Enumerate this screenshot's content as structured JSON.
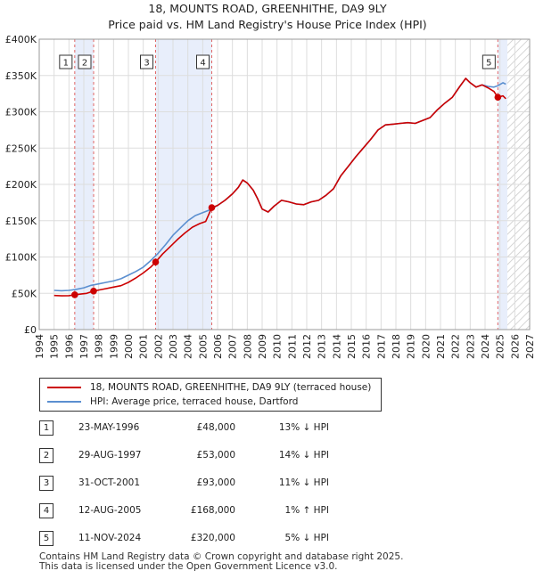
{
  "title_line1": "18, MOUNTS ROAD, GREENHITHE, DA9 9LY",
  "title_line2": "Price paid vs. HM Land Registry's House Price Index (HPI)",
  "chart_data": {
    "type": "line",
    "title": "18, MOUNTS ROAD, GREENHITHE, DA9 9LY — Price paid vs. HM Land Registry's House Price Index (HPI)",
    "xlabel": "",
    "ylabel": "",
    "xlim": [
      1994,
      2027
    ],
    "ylim": [
      0,
      400000
    ],
    "x_ticks": [
      "1994",
      "1995",
      "1996",
      "1997",
      "1998",
      "1999",
      "2000",
      "2001",
      "2002",
      "2003",
      "2004",
      "2005",
      "2006",
      "2007",
      "2008",
      "2009",
      "2010",
      "2011",
      "2012",
      "2013",
      "2014",
      "2015",
      "2016",
      "2017",
      "2018",
      "2019",
      "2020",
      "2021",
      "2022",
      "2023",
      "2024",
      "2025",
      "2026",
      "2027"
    ],
    "y_ticks": [
      {
        "value": 0,
        "label": "£0"
      },
      {
        "value": 50000,
        "label": "£50K"
      },
      {
        "value": 100000,
        "label": "£100K"
      },
      {
        "value": 150000,
        "label": "£150K"
      },
      {
        "value": 200000,
        "label": "£200K"
      },
      {
        "value": 250000,
        "label": "£250K"
      },
      {
        "value": 300000,
        "label": "£300K"
      },
      {
        "value": 350000,
        "label": "£350K"
      },
      {
        "value": 400000,
        "label": "£400K"
      }
    ],
    "grid": true,
    "series": [
      {
        "name": "18, MOUNTS ROAD, GREENHITHE, DA9 9LY (terraced house)",
        "color": "#cc0000",
        "points": [
          [
            1995.0,
            47000
          ],
          [
            1995.5,
            46500
          ],
          [
            1996.0,
            46800
          ],
          [
            1996.39,
            48000
          ],
          [
            1996.8,
            49000
          ],
          [
            1997.2,
            50000
          ],
          [
            1997.66,
            53000
          ],
          [
            1998.0,
            54500
          ],
          [
            1998.5,
            56500
          ],
          [
            1999.0,
            58500
          ],
          [
            1999.5,
            60500
          ],
          [
            2000.0,
            65000
          ],
          [
            2000.5,
            71000
          ],
          [
            2001.0,
            78000
          ],
          [
            2001.5,
            86000
          ],
          [
            2001.83,
            93000
          ],
          [
            2002.3,
            104000
          ],
          [
            2002.8,
            114000
          ],
          [
            2003.3,
            124000
          ],
          [
            2003.8,
            133000
          ],
          [
            2004.3,
            141000
          ],
          [
            2004.8,
            146000
          ],
          [
            2005.2,
            149000
          ],
          [
            2005.61,
            168000
          ],
          [
            2006.0,
            171000
          ],
          [
            2006.5,
            178000
          ],
          [
            2007.0,
            187000
          ],
          [
            2007.4,
            196000
          ],
          [
            2007.7,
            206000
          ],
          [
            2008.0,
            202000
          ],
          [
            2008.4,
            192000
          ],
          [
            2008.7,
            180000
          ],
          [
            2009.0,
            166000
          ],
          [
            2009.4,
            162000
          ],
          [
            2009.8,
            170000
          ],
          [
            2010.3,
            178000
          ],
          [
            2010.8,
            176000
          ],
          [
            2011.3,
            173000
          ],
          [
            2011.8,
            172000
          ],
          [
            2012.3,
            176000
          ],
          [
            2012.8,
            178000
          ],
          [
            2013.3,
            185000
          ],
          [
            2013.8,
            194000
          ],
          [
            2014.3,
            212000
          ],
          [
            2014.8,
            225000
          ],
          [
            2015.3,
            238000
          ],
          [
            2015.8,
            250000
          ],
          [
            2016.3,
            262000
          ],
          [
            2016.8,
            275000
          ],
          [
            2017.3,
            282000
          ],
          [
            2017.8,
            283000
          ],
          [
            2018.3,
            284000
          ],
          [
            2018.8,
            285000
          ],
          [
            2019.3,
            284000
          ],
          [
            2019.8,
            288000
          ],
          [
            2020.3,
            292000
          ],
          [
            2020.8,
            303000
          ],
          [
            2021.3,
            312000
          ],
          [
            2021.8,
            320000
          ],
          [
            2022.3,
            335000
          ],
          [
            2022.7,
            346000
          ],
          [
            2023.0,
            340000
          ],
          [
            2023.4,
            334000
          ],
          [
            2023.8,
            337000
          ],
          [
            2024.2,
            333000
          ],
          [
            2024.6,
            328000
          ],
          [
            2024.86,
            320000
          ],
          [
            2025.2,
            322000
          ],
          [
            2025.4,
            318000
          ]
        ]
      },
      {
        "name": "HPI: Average price, terraced house, Dartford",
        "color": "#5b8fd0",
        "points": [
          [
            1995.0,
            54000
          ],
          [
            1995.5,
            53500
          ],
          [
            1996.0,
            54000
          ],
          [
            1996.5,
            55500
          ],
          [
            1997.0,
            57500
          ],
          [
            1997.5,
            61000
          ],
          [
            1998.0,
            63000
          ],
          [
            1998.5,
            65000
          ],
          [
            1999.0,
            67000
          ],
          [
            1999.5,
            70000
          ],
          [
            2000.0,
            75000
          ],
          [
            2000.5,
            80000
          ],
          [
            2001.0,
            86000
          ],
          [
            2001.5,
            95000
          ],
          [
            2002.0,
            105000
          ],
          [
            2002.5,
            117000
          ],
          [
            2003.0,
            130000
          ],
          [
            2003.5,
            140000
          ],
          [
            2004.0,
            150000
          ],
          [
            2004.5,
            157000
          ],
          [
            2005.0,
            161000
          ],
          [
            2005.5,
            165000
          ],
          [
            2006.0,
            171000
          ],
          [
            2006.5,
            178000
          ],
          [
            2007.0,
            187000
          ],
          [
            2007.4,
            196000
          ],
          [
            2007.7,
            206000
          ],
          [
            2008.0,
            202000
          ],
          [
            2008.4,
            192000
          ],
          [
            2008.7,
            180000
          ],
          [
            2009.0,
            166000
          ],
          [
            2009.4,
            162000
          ],
          [
            2009.8,
            170000
          ],
          [
            2010.3,
            178000
          ],
          [
            2010.8,
            176000
          ],
          [
            2011.3,
            173000
          ],
          [
            2011.8,
            172000
          ],
          [
            2012.3,
            176000
          ],
          [
            2012.8,
            178000
          ],
          [
            2013.3,
            185000
          ],
          [
            2013.8,
            194000
          ],
          [
            2014.3,
            212000
          ],
          [
            2014.8,
            225000
          ],
          [
            2015.3,
            238000
          ],
          [
            2015.8,
            250000
          ],
          [
            2016.3,
            262000
          ],
          [
            2016.8,
            275000
          ],
          [
            2017.3,
            282000
          ],
          [
            2017.8,
            283000
          ],
          [
            2018.3,
            284000
          ],
          [
            2018.8,
            285000
          ],
          [
            2019.3,
            284000
          ],
          [
            2019.8,
            288000
          ],
          [
            2020.3,
            292000
          ],
          [
            2020.8,
            303000
          ],
          [
            2021.3,
            312000
          ],
          [
            2021.8,
            320000
          ],
          [
            2022.3,
            335000
          ],
          [
            2022.7,
            346000
          ],
          [
            2023.0,
            340000
          ],
          [
            2023.4,
            334000
          ],
          [
            2023.8,
            337000
          ],
          [
            2024.2,
            335000
          ],
          [
            2024.6,
            334000
          ],
          [
            2024.86,
            336000
          ],
          [
            2025.2,
            340000
          ],
          [
            2025.4,
            338000
          ]
        ]
      }
    ],
    "sales": [
      {
        "id": "1",
        "x": 1996.39,
        "price": 48000
      },
      {
        "id": "2",
        "x": 1997.66,
        "price": 53000
      },
      {
        "id": "3",
        "x": 2001.83,
        "price": 93000
      },
      {
        "id": "4",
        "x": 2005.61,
        "price": 168000
      },
      {
        "id": "5",
        "x": 2024.86,
        "price": 320000
      }
    ],
    "shaded_ranges": [
      [
        1996.39,
        1997.66
      ],
      [
        2001.83,
        2005.61
      ],
      [
        2024.86,
        2025.5
      ]
    ],
    "hatched_from": 2025.5
  },
  "legend": {
    "line1": "18, MOUNTS ROAD, GREENHITHE, DA9 9LY (terraced house)",
    "line2": "HPI: Average price, terraced house, Dartford"
  },
  "transactions": [
    {
      "num": "1",
      "date": "23-MAY-1996",
      "price": "£48,000",
      "hpi": "13% ↓ HPI"
    },
    {
      "num": "2",
      "date": "29-AUG-1997",
      "price": "£53,000",
      "hpi": "14% ↓ HPI"
    },
    {
      "num": "3",
      "date": "31-OCT-2001",
      "price": "£93,000",
      "hpi": "11% ↓ HPI"
    },
    {
      "num": "4",
      "date": "12-AUG-2005",
      "price": "£168,000",
      "hpi": "1% ↑ HPI"
    },
    {
      "num": "5",
      "date": "11-NOV-2024",
      "price": "£320,000",
      "hpi": "5% ↓ HPI"
    }
  ],
  "footer": {
    "line1": "Contains HM Land Registry data © Crown copyright and database right 2025.",
    "line2": "This data is licensed under the Open Government Licence v3.0."
  },
  "colors": {
    "red": "#cc0000",
    "blue": "#5b8fd0",
    "shade": "#e8eefb"
  }
}
